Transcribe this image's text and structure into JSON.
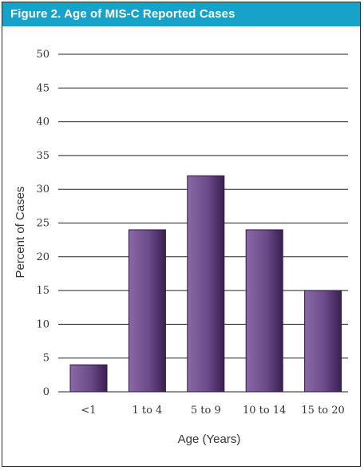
{
  "title": "Figure 2. Age of MIS-C Reported Cases",
  "colors": {
    "header": "#16a2c9",
    "bar_light": "#8a69a6",
    "bar_dark": "#3b1f52",
    "grid": "#222222"
  },
  "chart_data": {
    "type": "bar",
    "title": "Figure 2. Age of MIS-C Reported Cases",
    "xlabel": "Age (Years)",
    "ylabel": "Percent of Cases",
    "categories": [
      "<1",
      "1 to 4",
      "5 to 9",
      "10 to 14",
      "15 to 20"
    ],
    "values": [
      4,
      24,
      32,
      24,
      15
    ],
    "ylim": [
      0,
      50
    ],
    "yticks": [
      0,
      5,
      10,
      15,
      20,
      25,
      30,
      35,
      40,
      45,
      50
    ],
    "grid": true,
    "legend": "none"
  }
}
